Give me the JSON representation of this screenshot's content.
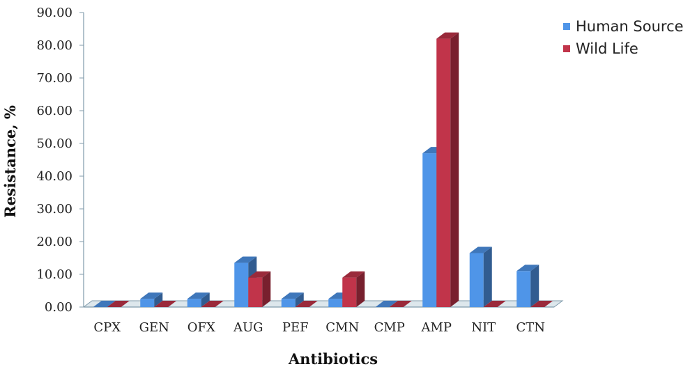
{
  "chart_data": {
    "type": "bar",
    "title": "",
    "xlabel": "Antibiotics",
    "ylabel": "Resistance, %",
    "ylim": [
      0,
      90
    ],
    "ytick_step": 10,
    "ytick_format": "0.00",
    "categories": [
      "CPX",
      "GEN",
      "OFX",
      "AUG",
      "PEF",
      "CMN",
      "CMP",
      "AMP",
      "NIT",
      "CTN"
    ],
    "series": [
      {
        "name": "Human Source",
        "values": [
          0,
          2.5,
          2.5,
          13.5,
          2.5,
          2.5,
          0,
          47,
          16.5,
          11
        ],
        "color": "#4f95e8"
      },
      {
        "name": "Wild Life",
        "values": [
          0,
          0,
          0,
          9,
          0,
          9,
          0,
          82,
          0,
          0
        ],
        "color": "#c1344a"
      }
    ],
    "legend_position": "top-right",
    "grid": false,
    "style": "3d-clustered-bar"
  }
}
